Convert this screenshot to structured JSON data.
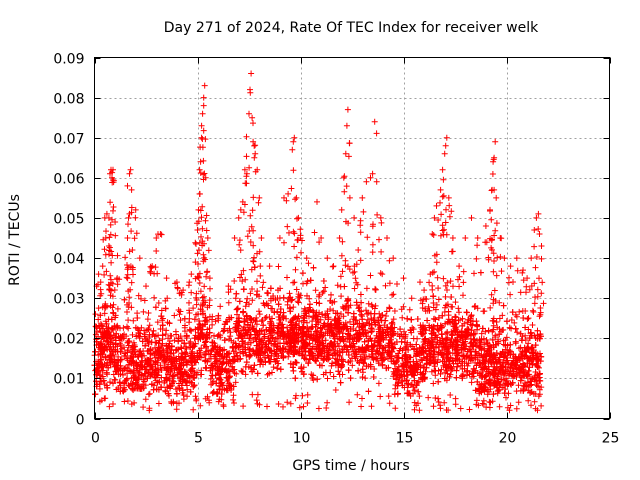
{
  "chart_data": {
    "type": "scatter",
    "title": "Day 271 of 2024, Rate Of TEC Index for receiver welk",
    "xlabel": "GPS time / hours",
    "ylabel": "ROTI / TECUs",
    "xlim": [
      0,
      25
    ],
    "ylim": [
      0,
      0.09
    ],
    "x_ticks": [
      "0",
      "5",
      "10",
      "15",
      "20",
      "25"
    ],
    "y_ticks": [
      "0",
      "0.01",
      "0.02",
      "0.03",
      "0.04",
      "0.05",
      "0.06",
      "0.07",
      "0.08",
      "0.09"
    ],
    "grid": true,
    "marker": "+",
    "color": "#ff0000",
    "x_range_of_data": [
      0,
      21.7
    ],
    "series": [
      {
        "values": [
          [
            0.1,
            0.033
          ],
          [
            0.2,
            0.036
          ],
          [
            0.3,
            0.034
          ],
          [
            0.4,
            0.038
          ],
          [
            0.5,
            0.05
          ],
          [
            0.55,
            0.045
          ],
          [
            0.6,
            0.051
          ],
          [
            0.7,
            0.05
          ],
          [
            0.7,
            0.043
          ],
          [
            0.75,
            0.061
          ],
          [
            0.8,
            0.062
          ],
          [
            0.85,
            0.06
          ],
          [
            0.9,
            0.062
          ],
          [
            1.0,
            0.049
          ],
          [
            1.1,
            0.035
          ],
          [
            1.3,
            0.02
          ],
          [
            1.6,
            0.045
          ],
          [
            1.65,
            0.05
          ],
          [
            1.6,
            0.058
          ],
          [
            1.7,
            0.061
          ],
          [
            1.75,
            0.062
          ],
          [
            1.8,
            0.057
          ],
          [
            1.7,
            0.051
          ],
          [
            2.0,
            0.052
          ],
          [
            2.2,
            0.04
          ],
          [
            2.5,
            0.033
          ],
          [
            2.8,
            0.038
          ],
          [
            3.0,
            0.045
          ],
          [
            3.2,
            0.046
          ],
          [
            3.5,
            0.035
          ],
          [
            4.0,
            0.034
          ],
          [
            4.3,
            0.032
          ],
          [
            4.6,
            0.034
          ],
          [
            4.7,
            0.036
          ],
          [
            4.9,
            0.039
          ],
          [
            5.0,
            0.047
          ],
          [
            5.05,
            0.052
          ],
          [
            5.1,
            0.056
          ],
          [
            5.1,
            0.062
          ],
          [
            5.15,
            0.064
          ],
          [
            5.2,
            0.07
          ],
          [
            5.2,
            0.073
          ],
          [
            5.25,
            0.076
          ],
          [
            5.3,
            0.078
          ],
          [
            5.3,
            0.08
          ],
          [
            5.35,
            0.083
          ],
          [
            5.4,
            0.06
          ],
          [
            5.5,
            0.045
          ],
          [
            5.6,
            0.035
          ],
          [
            6.0,
            0.025
          ],
          [
            6.5,
            0.033
          ],
          [
            6.8,
            0.045
          ],
          [
            7.0,
            0.05
          ],
          [
            7.1,
            0.052
          ],
          [
            7.2,
            0.054
          ],
          [
            7.3,
            0.062
          ],
          [
            7.4,
            0.061
          ],
          [
            7.5,
            0.076
          ],
          [
            7.55,
            0.082
          ],
          [
            7.6,
            0.086
          ],
          [
            7.65,
            0.075
          ],
          [
            7.7,
            0.069
          ],
          [
            7.8,
            0.066
          ],
          [
            7.9,
            0.062
          ],
          [
            8.0,
            0.055
          ],
          [
            8.1,
            0.045
          ],
          [
            8.5,
            0.038
          ],
          [
            9.0,
            0.045
          ],
          [
            9.2,
            0.055
          ],
          [
            9.4,
            0.056
          ],
          [
            9.6,
            0.067
          ],
          [
            9.65,
            0.069
          ],
          [
            9.7,
            0.07
          ],
          [
            9.8,
            0.055
          ],
          [
            9.9,
            0.05
          ],
          [
            10.0,
            0.045
          ],
          [
            10.3,
            0.04
          ],
          [
            10.8,
            0.054
          ],
          [
            11.0,
            0.045
          ],
          [
            11.3,
            0.04
          ],
          [
            11.6,
            0.038
          ],
          [
            11.9,
            0.045
          ],
          [
            12.0,
            0.052
          ],
          [
            12.1,
            0.06
          ],
          [
            12.2,
            0.066
          ],
          [
            12.25,
            0.073
          ],
          [
            12.3,
            0.077
          ],
          [
            12.4,
            0.055
          ],
          [
            12.6,
            0.05
          ],
          [
            12.8,
            0.042
          ],
          [
            13.0,
            0.055
          ],
          [
            13.2,
            0.059
          ],
          [
            13.4,
            0.06
          ],
          [
            13.5,
            0.061
          ],
          [
            13.6,
            0.074
          ],
          [
            13.7,
            0.059
          ],
          [
            13.9,
            0.05
          ],
          [
            14.2,
            0.045
          ],
          [
            14.5,
            0.04
          ],
          [
            15.0,
            0.035
          ],
          [
            15.4,
            0.03
          ],
          [
            15.8,
            0.034
          ],
          [
            16.0,
            0.032
          ],
          [
            16.3,
            0.036
          ],
          [
            16.4,
            0.046
          ],
          [
            16.5,
            0.05
          ],
          [
            16.6,
            0.053
          ],
          [
            16.8,
            0.057
          ],
          [
            16.9,
            0.062
          ],
          [
            17.0,
            0.066
          ],
          [
            17.05,
            0.068
          ],
          [
            17.1,
            0.07
          ],
          [
            17.2,
            0.055
          ],
          [
            17.4,
            0.045
          ],
          [
            17.7,
            0.038
          ],
          [
            18.0,
            0.045
          ],
          [
            18.3,
            0.05
          ],
          [
            18.6,
            0.045
          ],
          [
            19.0,
            0.048
          ],
          [
            19.2,
            0.052
          ],
          [
            19.3,
            0.057
          ],
          [
            19.35,
            0.064
          ],
          [
            19.4,
            0.065
          ],
          [
            19.45,
            0.069
          ],
          [
            19.5,
            0.055
          ],
          [
            19.7,
            0.045
          ],
          [
            19.9,
            0.04
          ],
          [
            20.2,
            0.038
          ],
          [
            20.5,
            0.04
          ],
          [
            20.8,
            0.037
          ],
          [
            21.0,
            0.035
          ],
          [
            21.2,
            0.04
          ],
          [
            21.35,
            0.047
          ],
          [
            21.45,
            0.05
          ],
          [
            21.55,
            0.051
          ],
          [
            21.6,
            0.046
          ],
          [
            21.7,
            0.043
          ]
        ]
      }
    ]
  }
}
